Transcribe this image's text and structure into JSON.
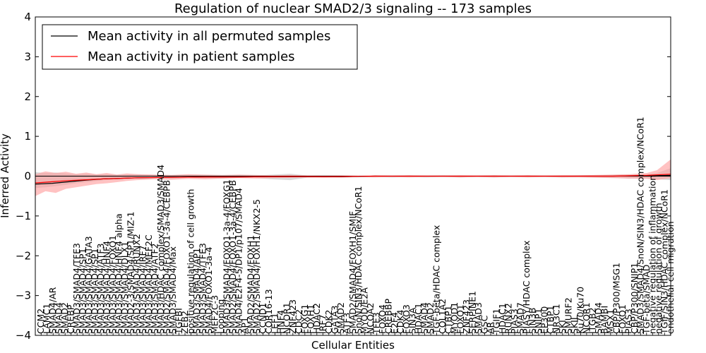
{
  "chart_data": {
    "type": "line",
    "title": "Regulation of nuclear SMAD2/3 signaling -- 173 samples",
    "xlabel": "Cellular Entities",
    "ylabel": "Inferred Activity",
    "ylim": [
      -4,
      4
    ],
    "yticks": [
      -4,
      -3,
      -2,
      -1,
      0,
      1,
      2,
      3,
      4
    ],
    "ytick_labels": [
      "−4",
      "−3",
      "−2",
      "−1",
      "0",
      "1",
      "2",
      "3",
      "4"
    ],
    "legend_location": "top-left",
    "series": [
      {
        "name": "Mean activity in all permuted samples",
        "color": "#000000",
        "x": [
          0,
          5,
          10,
          15,
          20,
          30,
          40,
          50,
          60,
          70,
          80,
          90,
          100,
          110,
          120,
          130,
          140,
          150,
          160,
          170,
          180,
          187
        ],
        "y": [
          -0.2,
          -0.18,
          -0.14,
          -0.1,
          -0.07,
          -0.04,
          -0.03,
          -0.02,
          -0.02,
          -0.01,
          -0.01,
          -0.01,
          0,
          0,
          0,
          0,
          0,
          0,
          0,
          0,
          0.01,
          0.02
        ]
      },
      {
        "name": "Mean activity in patient samples",
        "color": "#ff0000",
        "x": [
          0,
          5,
          10,
          15,
          20,
          30,
          40,
          50,
          60,
          70,
          80,
          90,
          100,
          110,
          120,
          130,
          140,
          150,
          160,
          170,
          180,
          187
        ],
        "y": [
          -0.17,
          -0.14,
          -0.11,
          -0.09,
          -0.07,
          -0.04,
          -0.03,
          -0.02,
          -0.02,
          -0.01,
          -0.01,
          -0.01,
          0,
          0,
          0,
          0,
          0,
          0,
          0,
          0,
          0.02,
          0.05
        ]
      }
    ],
    "bands": [
      {
        "name": "permuted spread",
        "color": "#bbbbbb",
        "x": [
          0,
          3,
          6,
          9,
          12,
          15,
          18,
          21,
          24,
          27,
          30,
          35,
          40,
          45,
          50,
          55,
          60,
          65,
          70,
          75,
          80,
          85,
          90,
          95,
          100,
          105,
          110,
          115,
          120,
          125,
          130,
          135,
          140,
          145,
          150,
          155,
          160,
          165,
          170,
          175,
          180,
          183,
          187
        ],
        "upper": [
          0.1,
          0.08,
          0.09,
          0.07,
          0.05,
          0.06,
          0.04,
          0.05,
          0.03,
          0.04,
          0.05,
          0.03,
          0.02,
          0.04,
          0.03,
          0.02,
          0.03,
          0.02,
          0.04,
          0.06,
          0.02,
          0.03,
          0.02,
          0.01,
          0.02,
          0.01,
          0.02,
          0.01,
          0.02,
          0.01,
          0.01,
          0.02,
          0.01,
          0.02,
          0.01,
          0.01,
          0.02,
          0.02,
          0.03,
          0.04,
          0.05,
          0.08,
          0.2
        ],
        "lower": [
          -0.3,
          -0.28,
          -0.25,
          -0.22,
          -0.18,
          -0.15,
          -0.12,
          -0.1,
          -0.09,
          -0.08,
          -0.06,
          -0.05,
          -0.06,
          -0.04,
          -0.05,
          -0.06,
          -0.04,
          -0.05,
          -0.08,
          -0.1,
          -0.04,
          -0.03,
          -0.04,
          -0.03,
          -0.02,
          -0.03,
          -0.02,
          -0.03,
          -0.02,
          -0.03,
          -0.02,
          -0.03,
          -0.02,
          -0.02,
          -0.02,
          -0.03,
          -0.02,
          -0.03,
          -0.04,
          -0.06,
          -0.05,
          -0.08,
          -0.1
        ]
      },
      {
        "name": "patient spread",
        "color": "#ff9999",
        "x": [
          0,
          3,
          6,
          9,
          12,
          15,
          18,
          21,
          24,
          27,
          30,
          35,
          40,
          45,
          50,
          55,
          60,
          65,
          70,
          75,
          80,
          85,
          90,
          95,
          100,
          105,
          110,
          115,
          120,
          125,
          130,
          135,
          140,
          145,
          150,
          155,
          160,
          165,
          170,
          175,
          180,
          183,
          187
        ],
        "upper": [
          0.05,
          0.12,
          0.08,
          0.11,
          0.06,
          0.09,
          0.05,
          0.08,
          0.04,
          0.07,
          0.05,
          0.04,
          0.03,
          0.05,
          0.04,
          0.03,
          0.04,
          0.03,
          0.02,
          0.03,
          0.02,
          0.01,
          0.02,
          0.01,
          0.02,
          0.01,
          0.02,
          0.01,
          0.01,
          0.02,
          0.01,
          0.02,
          0.01,
          0.02,
          0.01,
          0.02,
          0.02,
          0.03,
          0.04,
          0.05,
          0.08,
          0.15,
          0.42
        ],
        "lower": [
          -0.5,
          -0.38,
          -0.42,
          -0.32,
          -0.28,
          -0.24,
          -0.2,
          -0.18,
          -0.15,
          -0.12,
          -0.1,
          -0.08,
          -0.09,
          -0.07,
          -0.08,
          -0.06,
          -0.05,
          -0.06,
          -0.05,
          -0.04,
          -0.03,
          -0.04,
          -0.03,
          -0.02,
          -0.03,
          -0.02,
          -0.03,
          -0.02,
          -0.02,
          -0.03,
          -0.02,
          -0.03,
          -0.02,
          -0.03,
          -0.02,
          -0.03,
          -0.03,
          -0.04,
          -0.05,
          -0.06,
          -0.07,
          -0.1,
          -0.05
        ]
      }
    ],
    "x_labels": [
      "CCM2",
      "LAMC1",
      "SMAD4/AR",
      "SMAD4",
      "SMAD2",
      "CREBP",
      "SMAD3/SMAD4/TFE3",
      "SMAD3/SMAD4/SP1",
      "SMAD3/SMAD4/GATA3",
      "SMAD3/SMAD4/SP1",
      "SMAD3/SMAD4/ATF3",
      "SMAD3/SMAD4/HNF4",
      "SMAD3/SMAD4/FOXO1",
      "SMAD3/SMAD4/HNF4 alpha",
      "SMAD3/SMAD4/DLX1",
      "SMAD2-3/SMAD4/SP1/MIZ-1",
      "SMAD3/SMAD4/RUNX2",
      "SMAD3/SMAD4/IRF7",
      "SMAD3/SMAD4/MEF2C",
      "SMAD3/SMAD4/ATF2",
      "SMAD3/HDAC complex/SMAD3/SMAD4",
      "SMAD2/SMAD4/FOXO1-3a-4/CEBPB",
      "SMAD3/SMAD4/Max",
      "TGFBI",
      "ZEB2",
      "positive regulation of cell growth",
      "SMAD3/SMAD4/AP1",
      "SMAD3/SMAD4/TFE3",
      "SMAD4/FOXO1-3a-4",
      "MEF2C-3",
      "Looping",
      "SMAD3/SMAD4/FOXO1-3a-4/FOXG1",
      "SMAD2/SMAD4/FOXO1-3a-4/CEBPB",
      "SMAD4/E2F4-5/DP1/p107/SMAD4",
      "AP1",
      "SMAD2/SMAD4/FOXH1",
      "SMAD2/SMAD4/FOXH1/NKX2-5",
      "CCND1",
      "COR16-13",
      "LEF1",
      "HNF4",
      "NCOR1",
      "ZNF423",
      "CDC2",
      "FOXG1",
      "FOXH1",
      "HDAC2",
      "IRF7",
      "CDK2",
      "GATA3",
      "SMAD2",
      "ATF3",
      "SMAD2/SMAD4/FOXH1/SMIF",
      "SnoN/SIN3/HDAC complex/NCoR1",
      "MYOD/E2A",
      "NCOA2",
      "TFE3",
      "FOXO4",
      "CREBBP",
      "E2F4",
      "CDK4",
      "FOXO3",
      "SIN3A",
      "HDAC1",
      "SMAD4",
      "SMAD2",
      "TGF-beta/HDAC complex",
      "COL1A2",
      "CTBP1",
      "MYOD1",
      "FOXO1",
      "ZNF423",
      "SERPINE1",
      "SMAD3",
      "GSC",
      "AR",
      "TGIF1",
      "HDAC1",
      "RUNX2",
      "PIAS3",
      "SMAD7",
      "PIASY/HDAC complex",
      "SIN3B",
      "SNIP1",
      "EP300",
      "CTBP1",
      "NR3C1",
      "SKI",
      "SMURF2",
      "SKIL",
      "Ku70/Ku70",
      "NCOR1",
      "ITGB2",
      "SMAD4",
      "BAMBI",
      "MSX1",
      "CBP/P300/MSG1",
      "FOXO1",
      "PIAS3",
      "CBP/P300/SNIP1",
      "SMAD3/SMAD4/SnoN/SIN3/HDAC complex/NCoR1",
      "TGF-beta/SMAD",
      "negative regulation of inflammation",
      "negative regulation of growth",
      "TGIF/SIN3/HDAC complex/NCoR1",
      "endothelial cell migration"
    ]
  }
}
